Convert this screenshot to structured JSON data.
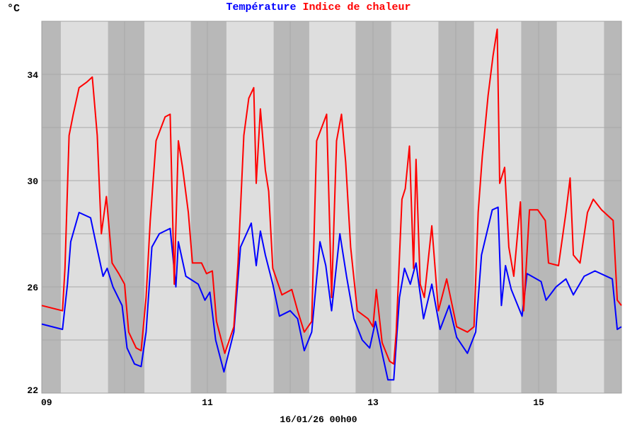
{
  "chart_data": {
    "type": "line",
    "unit_label": "°C",
    "title_parts": [
      {
        "text": "Température",
        "color": "#0000ff"
      },
      {
        "text": "Indice de chaleur",
        "color": "#ff0000"
      }
    ],
    "xlabel": "16/01/26 00h00",
    "xlim": [
      0,
      7
    ],
    "x_unit": "days since 09 00h00",
    "x_ticks": [
      {
        "v": 0,
        "label": "09"
      },
      {
        "v": 2,
        "label": "11"
      },
      {
        "v": 4,
        "label": "13"
      },
      {
        "v": 6,
        "label": "15"
      }
    ],
    "x_grid": [
      1,
      2,
      3,
      4,
      5,
      6
    ],
    "ylim": [
      22,
      36
    ],
    "y_ticks": [
      {
        "v": 22,
        "label": "22"
      },
      {
        "v": 26,
        "label": "26"
      },
      {
        "v": 30,
        "label": "30"
      },
      {
        "v": 34,
        "label": "34"
      }
    ],
    "y_grid": [
      24,
      26,
      28,
      30,
      32,
      34
    ],
    "night_bands": [
      [
        0,
        0.23
      ],
      [
        0.8,
        1.24
      ],
      [
        1.8,
        2.23
      ],
      [
        2.8,
        3.23
      ],
      [
        3.79,
        4.22
      ],
      [
        4.79,
        5.22
      ],
      [
        5.79,
        6.22
      ],
      [
        6.79,
        7
      ]
    ],
    "colors": {
      "plot_bg": "#dedede",
      "night": "#b8b8b8",
      "grid": "#a8a8a8"
    },
    "series": [
      {
        "name": "Température",
        "color": "#0000ff",
        "points": [
          [
            0,
            24.6
          ],
          [
            0.25,
            24.4
          ],
          [
            0.31,
            26.1
          ],
          [
            0.35,
            27.7
          ],
          [
            0.45,
            28.8
          ],
          [
            0.59,
            28.6
          ],
          [
            0.65,
            27.7
          ],
          [
            0.74,
            26.4
          ],
          [
            0.79,
            26.7
          ],
          [
            0.86,
            26
          ],
          [
            0.97,
            25.3
          ],
          [
            1.03,
            23.7
          ],
          [
            1.12,
            23.1
          ],
          [
            1.2,
            23
          ],
          [
            1.26,
            24.3
          ],
          [
            1.33,
            27.5
          ],
          [
            1.42,
            28
          ],
          [
            1.55,
            28.2
          ],
          [
            1.62,
            26
          ],
          [
            1.65,
            27.7
          ],
          [
            1.74,
            26.4
          ],
          [
            1.89,
            26.1
          ],
          [
            1.97,
            25.5
          ],
          [
            2.03,
            25.8
          ],
          [
            2.1,
            24
          ],
          [
            2.2,
            22.8
          ],
          [
            2.32,
            24.3
          ],
          [
            2.4,
            27.5
          ],
          [
            2.53,
            28.4
          ],
          [
            2.59,
            26.8
          ],
          [
            2.64,
            28.1
          ],
          [
            2.7,
            27.2
          ],
          [
            2.79,
            26.1
          ],
          [
            2.87,
            24.9
          ],
          [
            3.0,
            25.1
          ],
          [
            3.09,
            24.8
          ],
          [
            3.17,
            23.6
          ],
          [
            3.26,
            24.3
          ],
          [
            3.36,
            27.7
          ],
          [
            3.43,
            26.8
          ],
          [
            3.5,
            25.1
          ],
          [
            3.6,
            28
          ],
          [
            3.68,
            26.4
          ],
          [
            3.77,
            24.8
          ],
          [
            3.87,
            24
          ],
          [
            3.96,
            23.7
          ],
          [
            4.03,
            24.7
          ],
          [
            4.11,
            23.5
          ],
          [
            4.18,
            22.5
          ],
          [
            4.25,
            22.5
          ],
          [
            4.32,
            25.6
          ],
          [
            4.38,
            26.7
          ],
          [
            4.45,
            26.1
          ],
          [
            4.52,
            26.9
          ],
          [
            4.61,
            24.8
          ],
          [
            4.71,
            26.1
          ],
          [
            4.81,
            24.4
          ],
          [
            4.92,
            25.3
          ],
          [
            5.01,
            24.1
          ],
          [
            5.14,
            23.5
          ],
          [
            5.24,
            24.3
          ],
          [
            5.31,
            27.2
          ],
          [
            5.44,
            28.9
          ],
          [
            5.51,
            29
          ],
          [
            5.55,
            25.3
          ],
          [
            5.6,
            26.8
          ],
          [
            5.67,
            25.9
          ],
          [
            5.8,
            24.9
          ],
          [
            5.86,
            26.5
          ],
          [
            6.03,
            26.2
          ],
          [
            6.09,
            25.5
          ],
          [
            6.21,
            26
          ],
          [
            6.33,
            26.3
          ],
          [
            6.42,
            25.7
          ],
          [
            6.55,
            26.4
          ],
          [
            6.68,
            26.6
          ],
          [
            6.89,
            26.3
          ],
          [
            6.95,
            24.4
          ],
          [
            7,
            24.5
          ]
        ]
      },
      {
        "name": "Indice de chaleur",
        "color": "#ff0000",
        "points": [
          [
            0,
            25.3
          ],
          [
            0.25,
            25.1
          ],
          [
            0.28,
            26.7
          ],
          [
            0.33,
            31.7
          ],
          [
            0.38,
            32.5
          ],
          [
            0.45,
            33.5
          ],
          [
            0.54,
            33.7
          ],
          [
            0.61,
            33.9
          ],
          [
            0.67,
            31.7
          ],
          [
            0.72,
            28
          ],
          [
            0.78,
            29.4
          ],
          [
            0.85,
            26.9
          ],
          [
            0.93,
            26.5
          ],
          [
            1.0,
            26.1
          ],
          [
            1.05,
            24.3
          ],
          [
            1.14,
            23.7
          ],
          [
            1.2,
            23.6
          ],
          [
            1.26,
            25.6
          ],
          [
            1.31,
            28.5
          ],
          [
            1.38,
            31.5
          ],
          [
            1.49,
            32.4
          ],
          [
            1.55,
            32.5
          ],
          [
            1.6,
            26.1
          ],
          [
            1.65,
            31.5
          ],
          [
            1.7,
            30.5
          ],
          [
            1.77,
            28.8
          ],
          [
            1.82,
            26.9
          ],
          [
            1.93,
            26.9
          ],
          [
            1.99,
            26.5
          ],
          [
            2.06,
            26.6
          ],
          [
            2.11,
            24.7
          ],
          [
            2.21,
            23.5
          ],
          [
            2.32,
            24.5
          ],
          [
            2.37,
            26.9
          ],
          [
            2.44,
            31.7
          ],
          [
            2.5,
            33.1
          ],
          [
            2.56,
            33.5
          ],
          [
            2.59,
            29.9
          ],
          [
            2.64,
            32.7
          ],
          [
            2.7,
            30.4
          ],
          [
            2.74,
            29.6
          ],
          [
            2.79,
            26.7
          ],
          [
            2.9,
            25.7
          ],
          [
            3.02,
            25.9
          ],
          [
            3.09,
            25.1
          ],
          [
            3.17,
            24.3
          ],
          [
            3.26,
            24.7
          ],
          [
            3.32,
            31.5
          ],
          [
            3.38,
            32
          ],
          [
            3.44,
            32.5
          ],
          [
            3.5,
            25.6
          ],
          [
            3.56,
            31.5
          ],
          [
            3.62,
            32.5
          ],
          [
            3.67,
            30.7
          ],
          [
            3.73,
            27.5
          ],
          [
            3.81,
            25.1
          ],
          [
            3.94,
            24.8
          ],
          [
            4.0,
            24.5
          ],
          [
            4.04,
            25.9
          ],
          [
            4.11,
            23.9
          ],
          [
            4.2,
            23.2
          ],
          [
            4.25,
            23.1
          ],
          [
            4.28,
            24.3
          ],
          [
            4.35,
            29.3
          ],
          [
            4.39,
            29.7
          ],
          [
            4.44,
            31.3
          ],
          [
            4.49,
            26.7
          ],
          [
            4.52,
            30.8
          ],
          [
            4.57,
            26.1
          ],
          [
            4.62,
            25.6
          ],
          [
            4.71,
            28.3
          ],
          [
            4.79,
            25.1
          ],
          [
            4.89,
            26.3
          ],
          [
            5.01,
            24.5
          ],
          [
            5.14,
            24.3
          ],
          [
            5.22,
            24.5
          ],
          [
            5.27,
            28.8
          ],
          [
            5.32,
            30.9
          ],
          [
            5.39,
            33.2
          ],
          [
            5.45,
            34.7
          ],
          [
            5.5,
            35.7
          ],
          [
            5.53,
            29.9
          ],
          [
            5.59,
            30.5
          ],
          [
            5.64,
            27.5
          ],
          [
            5.7,
            26.4
          ],
          [
            5.78,
            29.2
          ],
          [
            5.82,
            25.1
          ],
          [
            5.89,
            28.9
          ],
          [
            5.99,
            28.9
          ],
          [
            6.08,
            28.5
          ],
          [
            6.12,
            26.9
          ],
          [
            6.24,
            26.8
          ],
          [
            6.33,
            28.8
          ],
          [
            6.38,
            30.1
          ],
          [
            6.42,
            27.2
          ],
          [
            6.5,
            26.9
          ],
          [
            6.59,
            28.8
          ],
          [
            6.66,
            29.3
          ],
          [
            6.76,
            28.9
          ],
          [
            6.9,
            28.5
          ],
          [
            6.95,
            25.5
          ],
          [
            7,
            25.3
          ]
        ]
      }
    ]
  }
}
